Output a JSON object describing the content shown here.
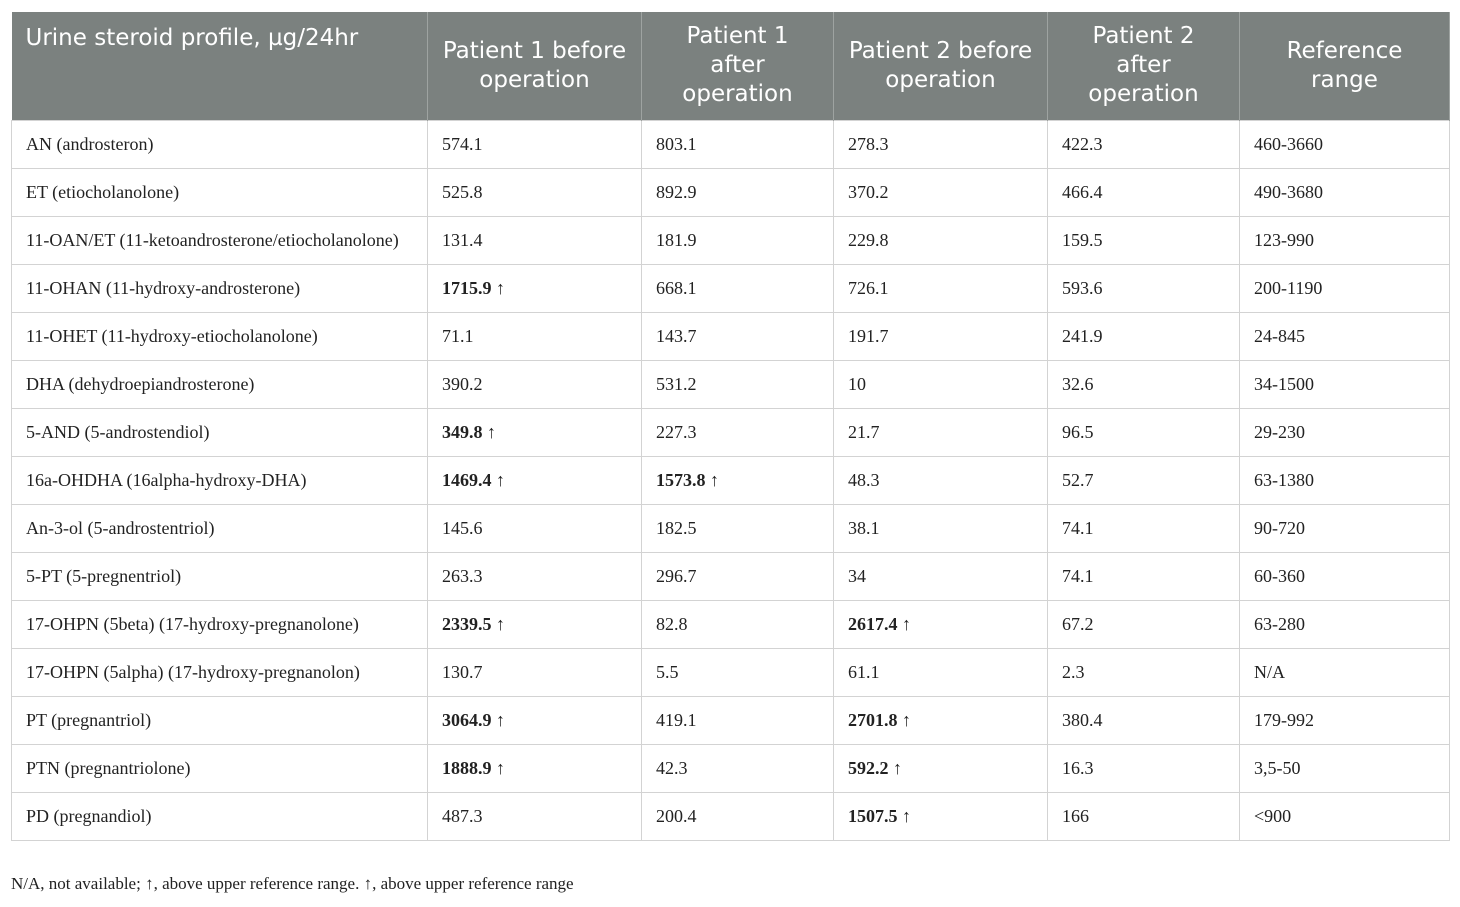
{
  "table": {
    "header": [
      "Urine steroid profile, µg/24hr",
      "Patient 1 before operation",
      "Patient 1 after operation",
      "Patient 2 before operation",
      "Patient 2 after operation",
      "Reference range"
    ],
    "rows": [
      [
        "AN (androsteron)",
        "574.1",
        "803.1",
        "278.3",
        "422.3",
        "460-3660"
      ],
      [
        "ET (etiocholanolone)",
        "525.8",
        "892.9",
        "370.2",
        "466.4",
        "490-3680"
      ],
      [
        "11-OAN/ET (11-ketoandrosterone/etiocholanolone)",
        "131.4",
        "181.9",
        "229.8",
        "159.5",
        "123-990"
      ],
      [
        "11-OHAN (11-hydroxy-androsterone)",
        {
          "text": "1715.9 ↑",
          "bold": true
        },
        "668.1",
        "726.1",
        "593.6",
        "200-1190"
      ],
      [
        "11-OHET (11-hydroxy-etiocholanolone)",
        "71.1",
        "143.7",
        "191.7",
        "241.9",
        "24-845"
      ],
      [
        "DHA (dehydroepiandrosterone)",
        "390.2",
        "531.2",
        "10",
        "32.6",
        "34-1500"
      ],
      [
        "5-AND (5-androstendiol)",
        {
          "text": "349.8 ↑",
          "bold": true
        },
        "227.3",
        "21.7",
        "96.5",
        "29-230"
      ],
      [
        "16a-OHDHA (16alpha-hydroxy-DHA)",
        {
          "text": "1469.4 ↑",
          "bold": true
        },
        {
          "text": "1573.8 ↑",
          "bold": true
        },
        "48.3",
        "52.7",
        "63-1380"
      ],
      [
        "An-3-ol (5-androstentriol)",
        "145.6",
        "182.5",
        "38.1",
        "74.1",
        "90-720"
      ],
      [
        "5-PT (5-pregnentriol)",
        "263.3",
        "296.7",
        "34",
        "74.1",
        "60-360"
      ],
      [
        "17-OHPN (5beta) (17-hydroxy-pregnanolone)",
        {
          "text": "2339.5 ↑",
          "bold": true
        },
        "82.8",
        {
          "text": "2617.4 ↑",
          "bold": true
        },
        "67.2",
        "63-280"
      ],
      [
        "17-OHPN (5alpha) (17-hydroxy-pregnanolon)",
        "130.7",
        "5.5",
        "61.1",
        "2.3",
        "N/A"
      ],
      [
        "PT (pregnantriol)",
        {
          "text": "3064.9 ↑",
          "bold": true
        },
        "419.1",
        {
          "text": "2701.8 ↑",
          "bold": true
        },
        "380.4",
        "179-992"
      ],
      [
        "PTN (pregnantriolone)",
        {
          "text": "1888.9 ↑",
          "bold": true
        },
        "42.3",
        {
          "text": "592.2 ↑",
          "bold": true
        },
        "16.3",
        "3,5-50"
      ],
      [
        "PD (pregnandiol)",
        "487.3",
        "200.4",
        {
          "text": "1507.5 ↑",
          "bold": true
        },
        "166",
        "<900"
      ]
    ],
    "footnote": "N/A, not available; ↑, above upper reference range. ↑, above upper reference range"
  }
}
